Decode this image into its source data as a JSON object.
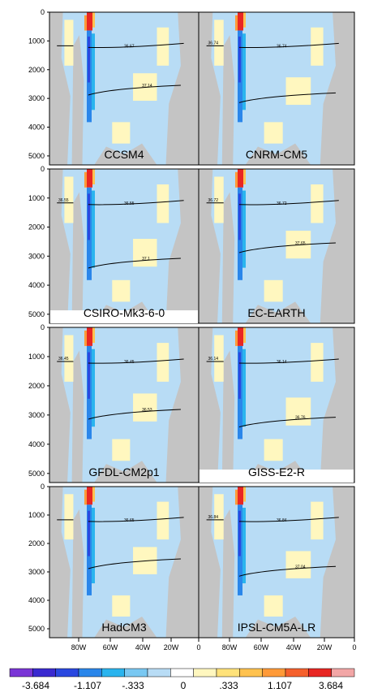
{
  "chart_data": {
    "type": "heatmap",
    "y_ticks": [
      0,
      1000,
      2000,
      3000,
      4000,
      5000
    ],
    "x_ticks": [
      "80W",
      "60W",
      "40W",
      "20W",
      "0"
    ],
    "colorbar": {
      "colors": [
        "#7a35d6",
        "#3a2ad0",
        "#2a48e0",
        "#2a86ea",
        "#2ab4ee",
        "#79c8f2",
        "#b8dcf5",
        "#ffffff",
        "#fff7bf",
        "#ffe27a",
        "#ffc24f",
        "#ff9a38",
        "#f5602c",
        "#e82623",
        "#f2a6a6"
      ],
      "labels": [
        "-3.684",
        "-1.107",
        "-.333",
        "0",
        ".333",
        "1.107",
        "3.684"
      ]
    },
    "panels": [
      {
        "model": "CCSM4",
        "contours": [
          "36.67",
          "37.14"
        ]
      },
      {
        "model": "CNRM-CM5",
        "contours": [
          "36.74",
          "36.74"
        ]
      },
      {
        "model": "CSIRO-Mk3-6-0",
        "contours": [
          "36.55",
          "36.55",
          "37.1"
        ]
      },
      {
        "model": "EC-EARTH",
        "contours": [
          "36.72",
          "36.72",
          "37.65"
        ]
      },
      {
        "model": "GFDL-CM2p1",
        "contours": [
          "36.45",
          "36.45",
          "36.53"
        ]
      },
      {
        "model": "GISS-E2-R",
        "contours": [
          "36.14",
          "36.14",
          "36.76"
        ]
      },
      {
        "model": "HadCM3",
        "contours": [
          "36.65"
        ]
      },
      {
        "model": "IPSL-CM5A-LR",
        "contours": [
          "36.84",
          "36.84",
          "37.04"
        ]
      }
    ]
  }
}
